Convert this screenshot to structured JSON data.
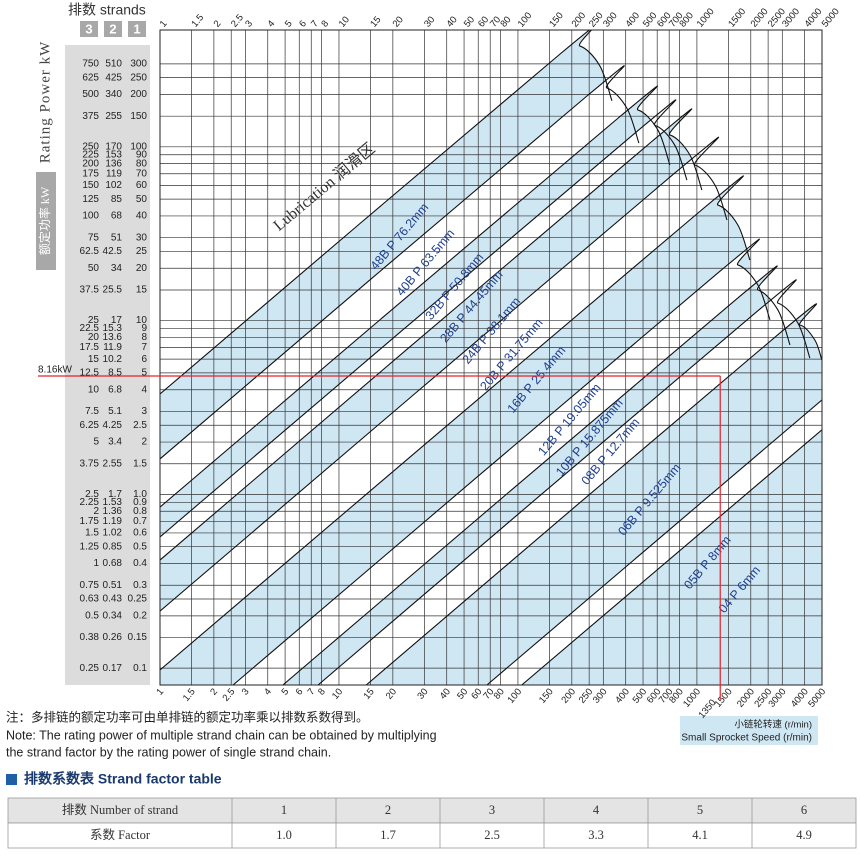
{
  "header": {
    "title": "排数 strands",
    "strands": [
      "3",
      "2",
      "1"
    ]
  },
  "chart_data": {
    "type": "area",
    "y_title": "Rating Power kW",
    "y_title_cn": "额定功率 kW",
    "x_title_cn": "小链轮转速 (r/min)",
    "x_title": "Small Sprocket Speed (r/min)",
    "lubrication_label": "Lubrication 润滑区",
    "log_x": true,
    "log_y": true,
    "grid": true,
    "xlim": [
      1,
      5000
    ],
    "ylim": [
      0.08,
      470
    ],
    "xticks": [
      1,
      1.5,
      2,
      2.5,
      3,
      4,
      5,
      6,
      7,
      8,
      10,
      15,
      20,
      30,
      40,
      50,
      60,
      70,
      80,
      100,
      150,
      200,
      250,
      300,
      400,
      500,
      600,
      700,
      800,
      1000,
      1500,
      2000,
      2500,
      3000,
      4000,
      5000
    ],
    "yticks": [
      0.1,
      0.15,
      0.2,
      0.25,
      0.3,
      0.4,
      0.5,
      0.6,
      0.7,
      0.8,
      0.9,
      {
        "value": 1,
        "label": "1.0"
      },
      1.5,
      2,
      2.5,
      3,
      4,
      5,
      6,
      7,
      8,
      9,
      10,
      15,
      20,
      25,
      30,
      40,
      50,
      60,
      70,
      80,
      90,
      100,
      150,
      200,
      250,
      300
    ],
    "yticks_2strand": [
      0.17,
      0.26,
      0.34,
      0.43,
      0.51,
      0.68,
      0.85,
      1.02,
      1.19,
      1.36,
      1.53,
      1.7,
      2.55,
      3.4,
      4.25,
      5.1,
      6.8,
      8.5,
      10.2,
      11.9,
      13.6,
      15.3,
      17,
      25.5,
      34,
      42.5,
      51,
      68,
      85,
      102,
      119,
      136,
      153,
      170,
      255,
      340,
      425,
      510
    ],
    "yticks_3strand": [
      0.25,
      0.38,
      0.5,
      0.63,
      0.75,
      1,
      1.25,
      1.5,
      1.75,
      2,
      2.25,
      2.5,
      3.75,
      5,
      6.25,
      7.5,
      10,
      12.5,
      15,
      17.5,
      20,
      22.5,
      25,
      37.5,
      50,
      62.5,
      75,
      100,
      125,
      150,
      175,
      200,
      225,
      250,
      375,
      500,
      625,
      750
    ],
    "series": [
      {
        "name": "48B P 76.2mm",
        "color": "#cfe6f3",
        "x": [
          1,
          172,
          222,
          287,
          335
        ],
        "values": [
          3.78,
          342,
          380,
          292,
          184
        ]
      },
      {
        "name": "40B P 63.5mm",
        "color": "#ffffff",
        "x": [
          1,
          243,
          314,
          406,
          474
        ],
        "values": [
          1.6,
          196,
          218,
          167,
          105
        ]
      },
      {
        "name": "32B P 50.8mm",
        "color": "#cfe6f3",
        "x": [
          1,
          362,
          468,
          605,
          706
        ],
        "values": [
          0.845,
          146,
          163,
          125,
          78.6
        ]
      },
      {
        "name": "28B P 44.45mm",
        "color": "#ffffff",
        "x": [
          1,
          451,
          582,
          753,
          879
        ],
        "values": [
          0.569,
          120,
          133,
          102,
          64.4
        ]
      },
      {
        "name": "24B P 38.1mm",
        "color": "#cfe6f3",
        "x": [
          1,
          546,
          706,
          914,
          1066
        ],
        "values": [
          0.419,
          105,
          117,
          89.7,
          56.4
        ]
      },
      {
        "name": "20B P 31.75mm",
        "color": "#ffffff",
        "x": [
          1,
          753,
          974,
          1261,
          1472
        ],
        "values": [
          0.213,
          70.7,
          78.6,
          60.3,
          37.9
        ]
      },
      {
        "name": "16B P 25.4mm",
        "color": "#cfe6f3",
        "x": [
          1,
          1014,
          1310,
          1694,
          1977
        ],
        "values": [
          0.0977,
          41.6,
          46.2,
          35.5,
          22.3
        ]
      },
      {
        "name": "12B P 19.05mm",
        "color": "#ffffff",
        "x": [
          2.56,
          1310,
          1694,
          2193,
          2559
        ],
        "values": [
          0.08,
          18.8,
          20.9,
          16,
          10.1
        ]
      },
      {
        "name": "10B P 15.875mm",
        "color": "#cfe6f3",
        "x": [
          4.86,
          1694,
          2193,
          2837,
          3311
        ],
        "values": [
          0.08,
          13.5,
          15,
          11.5,
          7.24
        ]
      },
      {
        "name": "08B P 12.7mm",
        "color": "#ffffff",
        "x": [
          7.64,
          2193,
          2837,
          3664,
          4276
        ],
        "values": [
          0.08,
          11.4,
          12.6,
          9.69,
          6.09
        ]
      },
      {
        "name": "06B P 9.525mm",
        "color": "#cfe6f3",
        "x": [
          14.2,
          2911,
          3761,
          4560,
          4990
        ],
        "values": [
          0.08,
          8.49,
          9.43,
          7.73,
          5.93
        ]
      },
      {
        "name": "05B P 8mm",
        "color": "#ffffff",
        "x": [
          67.1,
          4990
        ],
        "values": [
          0.08,
          3.49
        ]
      },
      {
        "name": "04 P 6mm",
        "color": "#cfe6f3",
        "x": [
          105,
          4990
        ],
        "values": [
          0.08,
          2.35
        ]
      }
    ],
    "annotation": {
      "text": "8.16kW",
      "x": 1350,
      "y": 4.8,
      "color": "#e8202a"
    }
  },
  "note": [
    "注：多排链的额定功率可由单排链的额定功率乘以排数系数得到。",
    "Note: The rating power of multiple strand chain can be obtained by multiplying",
    "the strand factor by the rating power of single strand chain."
  ],
  "table": {
    "title": "排数系数表 Strand factor table",
    "rows": [
      [
        "排数 Number of strand",
        "1",
        "2",
        "3",
        "4",
        "5",
        "6"
      ],
      [
        "系数 Factor",
        "1.0",
        "1.7",
        "2.5",
        "3.3",
        "4.1",
        "4.9"
      ]
    ]
  }
}
